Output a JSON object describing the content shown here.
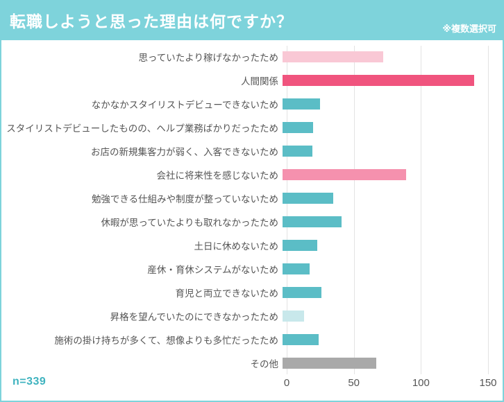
{
  "header": {
    "title": "転職しようと思った理由は何ですか？",
    "note": "※複数選択可",
    "bg_color": "#7ED3DB",
    "title_color": "#ffffff"
  },
  "panel": {
    "border_color": "#7ED3DB",
    "gridline_color": "#e3e3e3"
  },
  "footer": {
    "sample_size": "n=339",
    "sample_size_color": "#3FB3BF"
  },
  "chart_data": {
    "type": "bar",
    "orientation": "horizontal",
    "title": "転職しようと思った理由は何ですか？",
    "xlabel": "",
    "ylabel": "",
    "xlim": [
      0,
      150
    ],
    "ticks": [
      0,
      50,
      100,
      150
    ],
    "grid": true,
    "categories": [
      "思っていたより稼げなかったため",
      "人間関係",
      "なかなかスタイリストデビューできないため",
      "スタイリストデビューしたものの、ヘルプ業務ばかりだったため",
      "お店の新規集客力が弱く、入客できないため",
      "会社に将来性を感じないため",
      "勉強できる仕組みや制度が整っていないため",
      "休暇が思っていたよりも取れなかったため",
      "土日に休めないため",
      "産休・育休システムがないため",
      "育児と両立できないため",
      "昇格を望んでいたのにできなかったため",
      "施術の掛け持ちが多くて、想像よりも多忙だったため",
      "その他"
    ],
    "values": [
      75,
      143,
      28,
      23,
      22,
      92,
      38,
      44,
      26,
      20,
      29,
      16,
      27,
      70
    ],
    "bar_colors": [
      "#F9C8D5",
      "#F0547E",
      "#5BBDC6",
      "#5BBDC6",
      "#5BBDC6",
      "#F591AE",
      "#5BBDC6",
      "#5BBDC6",
      "#5BBDC6",
      "#5BBDC6",
      "#5BBDC6",
      "#C8E8EB",
      "#5BBDC6",
      "#A9A9A9"
    ],
    "palette": {
      "highlight_strong": "#F0547E",
      "highlight_medium": "#F591AE",
      "highlight_light": "#F9C8D5",
      "base": "#5BBDC6",
      "base_light": "#C8E8EB",
      "other": "#A9A9A9"
    }
  }
}
